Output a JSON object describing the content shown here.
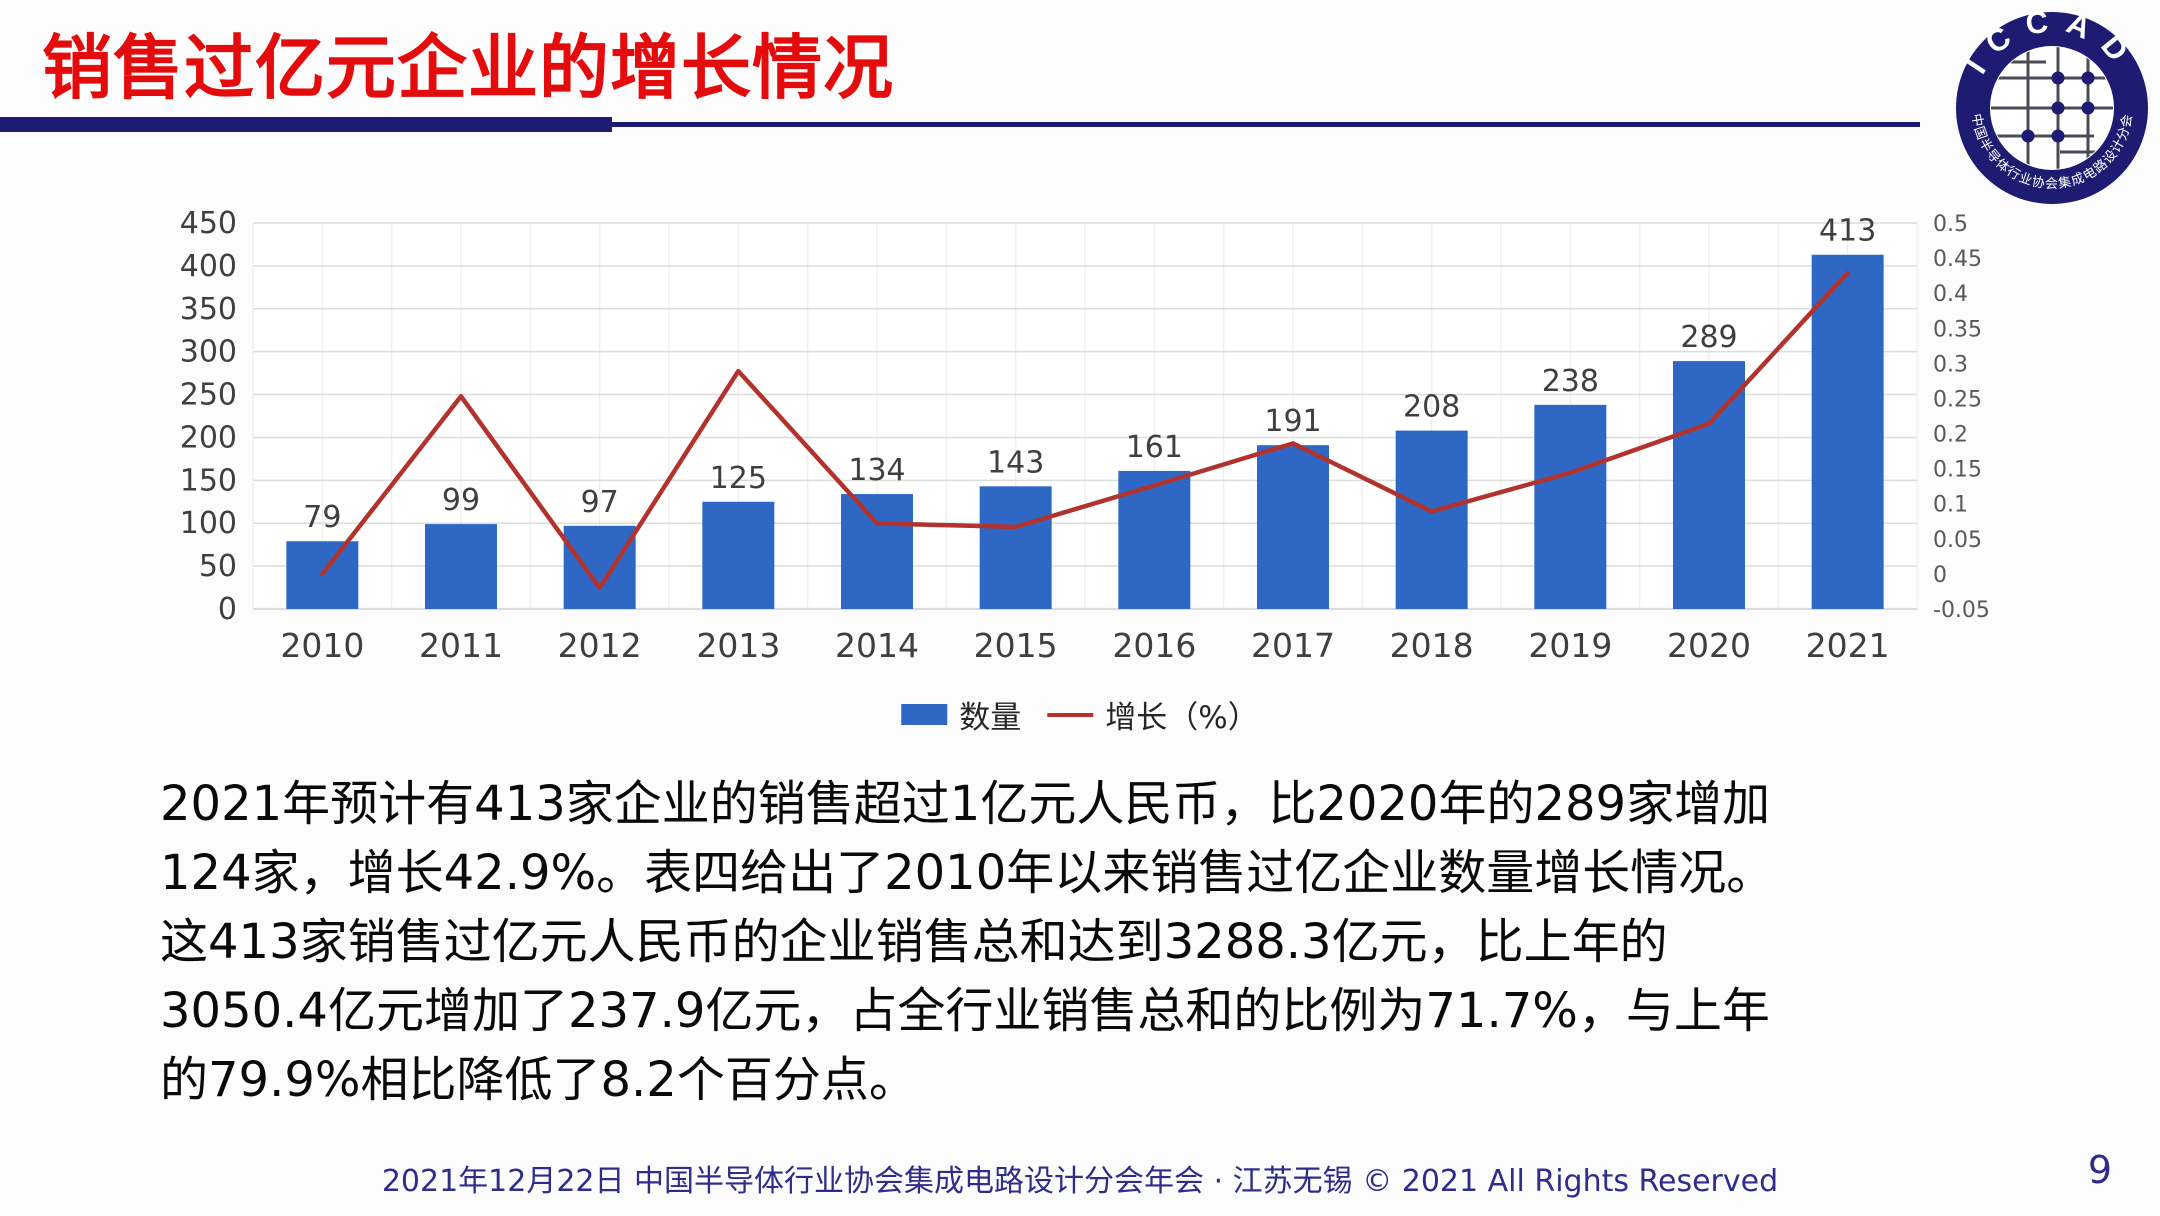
{
  "slide": {
    "title": "销售过亿元企业的增长情况",
    "body_lines": [
      "2021年预计有413家企业的销售超过1亿元人民币，比2020年的289家增加",
      "124家，增长42.9%。表四给出了2010年以来销售过亿企业数量增长情况。",
      "这413家销售过亿元人民币的企业销售总和达到3288.3亿元，比上年的",
      "3050.4亿元增加了237.9亿元，占全行业销售总和的比例为71.7%，与上年",
      "的79.9%相比降低了8.2个百分点。"
    ],
    "footer": "2021年12月22日 中国半导体行业协会集成电路设计分会年会 · 江苏无锡 © 2021 All Rights Reserved",
    "page_number": "9"
  },
  "logo": {
    "top_text": "ICCAD",
    "bottom_text": "中国半导体行业协会集成电路设计分会"
  },
  "colors": {
    "title_red": "#e30b0b",
    "navy": "#1e1c72",
    "bar_blue": "#2e68c4",
    "line_red": "#b2332d",
    "footer_navy": "#2e2e8a",
    "tick_gray": "#3f3f3f",
    "right_tick_gray": "#595959",
    "grid_gray": "#dcdcdc",
    "grid_light": "#ececec",
    "plot_bg": "#ffffff"
  },
  "chart_data": {
    "type": "bar+line",
    "categories": [
      "2010",
      "2011",
      "2012",
      "2013",
      "2014",
      "2015",
      "2016",
      "2017",
      "2018",
      "2019",
      "2020",
      "2021"
    ],
    "series": [
      {
        "name": "数量",
        "type": "bar",
        "axis": "left",
        "values": [
          79,
          99,
          97,
          125,
          134,
          143,
          161,
          191,
          208,
          238,
          289,
          413
        ]
      },
      {
        "name": "增长（%）",
        "type": "line",
        "axis": "right",
        "values": [
          0.0,
          0.253,
          -0.02,
          0.289,
          0.072,
          0.067,
          0.126,
          0.186,
          0.089,
          0.144,
          0.214,
          0.429
        ]
      }
    ],
    "left_axis": {
      "min": 0,
      "max": 450,
      "tick_labels": [
        "450",
        "400",
        "350",
        "300",
        "250",
        "200",
        "150",
        "100",
        "50",
        "0"
      ]
    },
    "right_axis": {
      "min": -0.05,
      "max": 0.5,
      "tick_labels": [
        "0.5",
        "0.45",
        "0.4",
        "0.35",
        "0.3",
        "0.25",
        "0.2",
        "0.15",
        "0.1",
        "0.05",
        "0",
        "-0.05"
      ]
    },
    "legend": [
      {
        "label": "数量",
        "marker": "bar"
      },
      {
        "label": "增长（%）",
        "marker": "line"
      }
    ],
    "grid": true,
    "legend_position": "bottom-center",
    "bar_labels_shown": true
  }
}
